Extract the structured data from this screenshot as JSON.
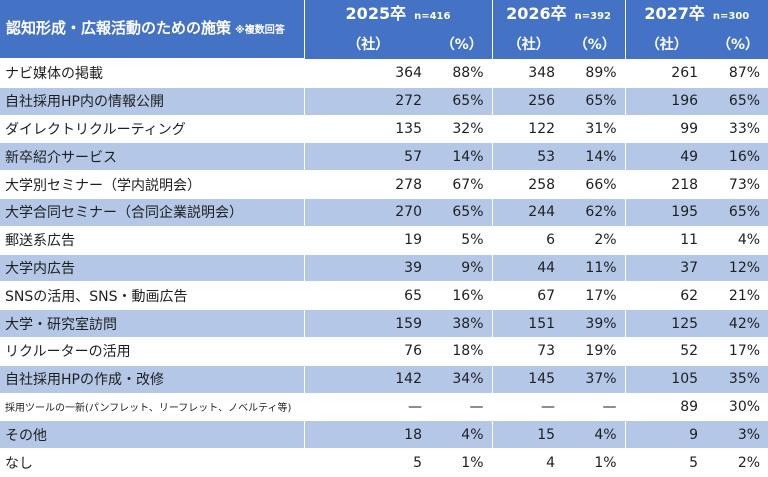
{
  "header": {
    "title": "認知形成・広報活動のための施策",
    "title_note": "※複数回答",
    "years": [
      {
        "label": "2025卒",
        "n": "n=416"
      },
      {
        "label": "2026卒",
        "n": "n=392"
      },
      {
        "label": "2027卒",
        "n": "n=300"
      }
    ],
    "unit_count": "（社）",
    "unit_pct": "（%）"
  },
  "rows": [
    {
      "label": "ナビ媒体の掲載",
      "v": [
        "364",
        "88%",
        "348",
        "89%",
        "261",
        "87%"
      ]
    },
    {
      "label": "自社採用HP内の情報公開",
      "v": [
        "272",
        "65%",
        "256",
        "65%",
        "196",
        "65%"
      ]
    },
    {
      "label": "ダイレクトリクルーティング",
      "v": [
        "135",
        "32%",
        "122",
        "31%",
        "99",
        "33%"
      ]
    },
    {
      "label": "新卒紹介サービス",
      "v": [
        "57",
        "14%",
        "53",
        "14%",
        "49",
        "16%"
      ]
    },
    {
      "label": "大学別セミナー（学内説明会）",
      "v": [
        "278",
        "67%",
        "258",
        "66%",
        "218",
        "73%"
      ]
    },
    {
      "label": "大学合同セミナー（合同企業説明会）",
      "v": [
        "270",
        "65%",
        "244",
        "62%",
        "195",
        "65%"
      ]
    },
    {
      "label": "郵送系広告",
      "v": [
        "19",
        "5%",
        "6",
        "2%",
        "11",
        "4%"
      ]
    },
    {
      "label": "大学内広告",
      "v": [
        "39",
        "9%",
        "44",
        "11%",
        "37",
        "12%"
      ]
    },
    {
      "label": "SNSの活用、SNS・動画広告",
      "v": [
        "65",
        "16%",
        "67",
        "17%",
        "62",
        "21%"
      ]
    },
    {
      "label": "大学・研究室訪問",
      "v": [
        "159",
        "38%",
        "151",
        "39%",
        "125",
        "42%"
      ]
    },
    {
      "label": "リクルーターの活用",
      "v": [
        "76",
        "18%",
        "73",
        "19%",
        "52",
        "17%"
      ]
    },
    {
      "label": "自社採用HPの作成・改修",
      "v": [
        "142",
        "34%",
        "145",
        "37%",
        "105",
        "35%"
      ]
    },
    {
      "label": "採用ツールの一新(パンフレット、リーフレット、ノベルティ等)",
      "v": [
        "—",
        "—",
        "—",
        "—",
        "89",
        "30%"
      ]
    },
    {
      "label": "その他",
      "v": [
        "18",
        "4%",
        "15",
        "4%",
        "9",
        "3%"
      ]
    },
    {
      "label": "なし",
      "v": [
        "5",
        "1%",
        "4",
        "1%",
        "5",
        "2%"
      ]
    }
  ]
}
